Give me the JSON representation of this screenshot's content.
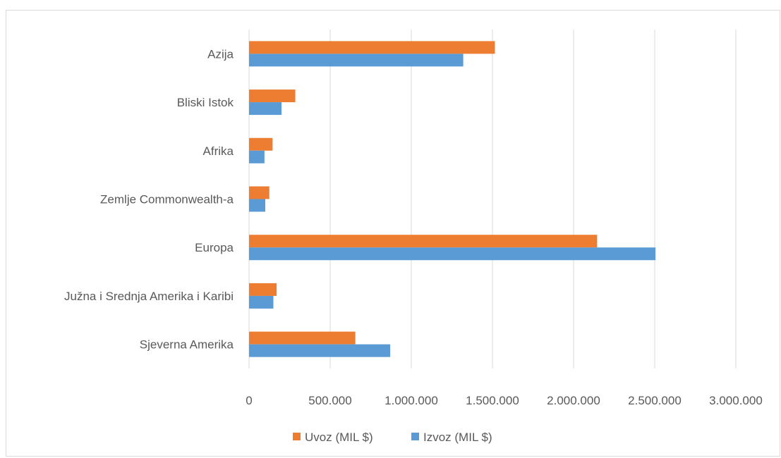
{
  "chart_data": {
    "type": "bar",
    "orientation": "horizontal",
    "categories": [
      "Azija ",
      "Bliski Istok",
      "Afrika ",
      "Zemlje Commonwealth-a",
      "Europa",
      "Južna i Srednja Amerika i Karibi",
      "Sjeverna Amerika"
    ],
    "series": [
      {
        "name": "Uvoz (MIL $)",
        "color": "#ed7d31",
        "values": [
          1515000,
          285000,
          145000,
          125000,
          2145000,
          170000,
          655000
        ]
      },
      {
        "name": "Izvoz (MIL $)",
        "color": "#5b9bd5",
        "values": [
          1320000,
          200000,
          95000,
          100000,
          2505000,
          150000,
          870000
        ]
      }
    ],
    "xlim": [
      0,
      3000000
    ],
    "x_ticks": [
      0,
      500000,
      1000000,
      1500000,
      2000000,
      2500000,
      3000000
    ],
    "x_tick_labels": [
      "0",
      "500.000",
      "1.000.000",
      "1.500.000",
      "2.000.000",
      "2.500.000",
      "3.000.000"
    ],
    "title": "",
    "xlabel": "",
    "ylabel": "",
    "grid": "vertical",
    "legend_position": "bottom",
    "gridline_color": "#d9d9d9"
  }
}
